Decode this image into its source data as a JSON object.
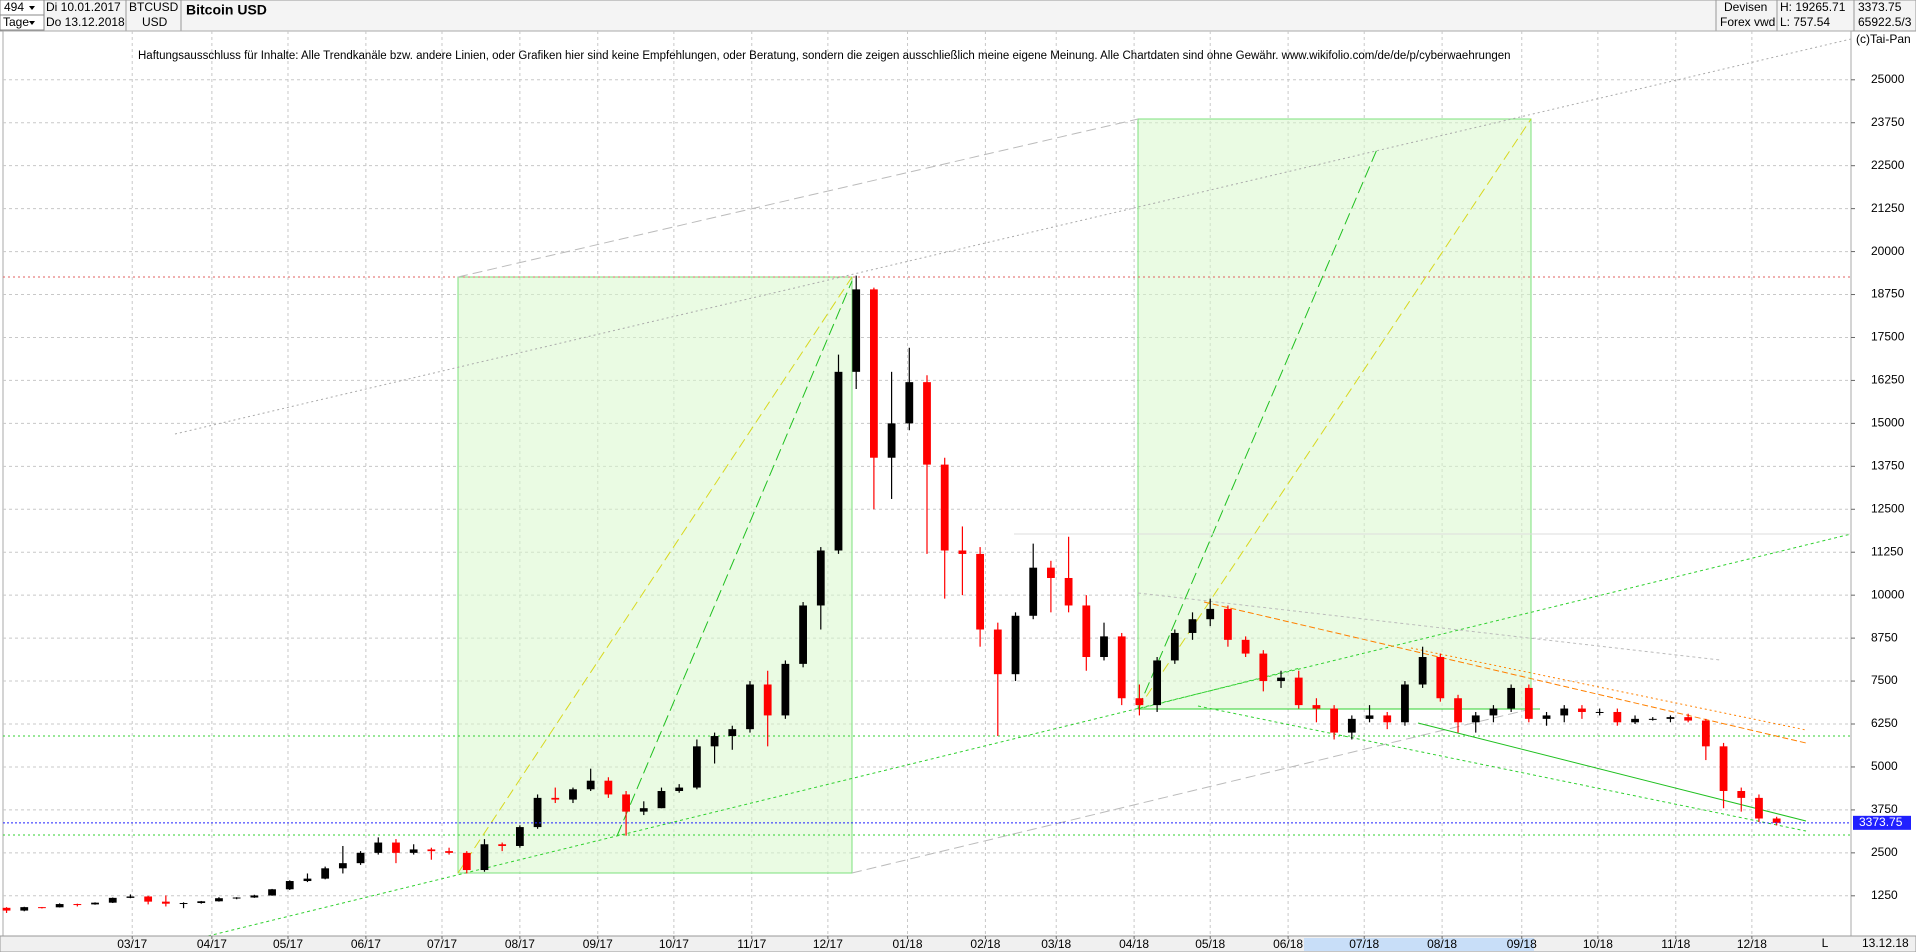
{
  "header": {
    "count": "494",
    "start": "Di 10.01.2017",
    "unit": "Tage",
    "end": "Do 13.12.2018",
    "symbol": "BTCUSD",
    "currency": "USD",
    "market": "Devisen",
    "source": "Forex vwd",
    "high": "H: 19265.71",
    "low": "L: 757.54",
    "last": "3373.75",
    "info": "65922.5/3"
  },
  "copyright": "(c)Tai-Pan",
  "disclaimer": "Haftungsausschluss für Inhalte: Alle Trendkanäle bzw. andere Linien, oder Grafiken hier sind keine Empfehlungen, oder Beratung, sondern die zeigen ausschließlich meine eigene Meinung. Alle Chartdaten sind ohne Gewähr.  www.wikifolio.com/de/de/p/cyberwaehrungen",
  "footer": {
    "date": "13.12.18",
    "scale": "L"
  },
  "chart_data": {
    "type": "candlestick",
    "title": "Bitcoin USD",
    "up_color": "#000000",
    "down_color": "#ff0000",
    "last_price": 3373.75,
    "last_color": "#2020ff",
    "grid": true,
    "xlim": [
      -0.2,
      104.2
    ],
    "xticks": [
      {
        "value": 7.1,
        "label": "03/17"
      },
      {
        "value": 11.6,
        "label": "04/17"
      },
      {
        "value": 15.9,
        "label": "05/17"
      },
      {
        "value": 20.3,
        "label": "06/17"
      },
      {
        "value": 24.6,
        "label": "07/17"
      },
      {
        "value": 29,
        "label": "08/17"
      },
      {
        "value": 33.4,
        "label": "09/17"
      },
      {
        "value": 37.7,
        "label": "10/17"
      },
      {
        "value": 42.1,
        "label": "11/17"
      },
      {
        "value": 46.4,
        "label": "12/17"
      },
      {
        "value": 50.9,
        "label": "01/18"
      },
      {
        "value": 55.3,
        "label": "02/18"
      },
      {
        "value": 59.3,
        "label": "03/18"
      },
      {
        "value": 63.7,
        "label": "04/18"
      },
      {
        "value": 68,
        "label": "05/18"
      },
      {
        "value": 72.4,
        "label": "06/18"
      },
      {
        "value": 76.7,
        "label": "07/18"
      },
      {
        "value": 81.1,
        "label": "08/18"
      },
      {
        "value": 85.6,
        "label": "09/18"
      },
      {
        "value": 89.9,
        "label": "10/18"
      },
      {
        "value": 94.3,
        "label": "11/18"
      },
      {
        "value": 98.6,
        "label": "12/18"
      }
    ],
    "ylim": [
      80,
      26420
    ],
    "yticks": [
      1250,
      2500,
      3750,
      5000,
      6250,
      7500,
      8750,
      10000,
      11250,
      12500,
      13750,
      15000,
      16250,
      17500,
      18750,
      20000,
      21250,
      22500,
      23750,
      25000
    ],
    "ohlc": [
      [
        900,
        920,
        750,
        820
      ],
      [
        820,
        930,
        800,
        920
      ],
      [
        920,
        925,
        880,
        915
      ],
      [
        915,
        1030,
        910,
        1010
      ],
      [
        1010,
        1020,
        940,
        1000
      ],
      [
        1000,
        1060,
        990,
        1050
      ],
      [
        1050,
        1200,
        1040,
        1190
      ],
      [
        1190,
        1290,
        1180,
        1230
      ],
      [
        1230,
        1250,
        1000,
        1080
      ],
      [
        1080,
        1260,
        940,
        1020
      ],
      [
        1020,
        1060,
        890,
        1040
      ],
      [
        1040,
        1100,
        1020,
        1090
      ],
      [
        1090,
        1210,
        1080,
        1180
      ],
      [
        1180,
        1210,
        1150,
        1200
      ],
      [
        1200,
        1280,
        1190,
        1260
      ],
      [
        1260,
        1450,
        1250,
        1440
      ],
      [
        1440,
        1700,
        1420,
        1680
      ],
      [
        1680,
        1900,
        1650,
        1750
      ],
      [
        1750,
        2100,
        1730,
        2050
      ],
      [
        2050,
        2700,
        1900,
        2200
      ],
      [
        2200,
        2550,
        2150,
        2500
      ],
      [
        2500,
        2950,
        2450,
        2800
      ],
      [
        2800,
        2900,
        2200,
        2500
      ],
      [
        2500,
        2750,
        2450,
        2600
      ],
      [
        2600,
        2650,
        2300,
        2550
      ],
      [
        2550,
        2650,
        2450,
        2500
      ],
      [
        2500,
        2550,
        1900,
        2000
      ],
      [
        2000,
        2900,
        1950,
        2750
      ],
      [
        2750,
        2800,
        2550,
        2700
      ],
      [
        2700,
        3300,
        2650,
        3250
      ],
      [
        3250,
        4200,
        3200,
        4100
      ],
      [
        4100,
        4400,
        3950,
        4050
      ],
      [
        4050,
        4400,
        3950,
        4350
      ],
      [
        4350,
        4950,
        4300,
        4600
      ],
      [
        4600,
        4700,
        4100,
        4200
      ],
      [
        4200,
        4300,
        3000,
        3700
      ],
      [
        3700,
        4000,
        3600,
        3800
      ],
      [
        3800,
        4400,
        3800,
        4300
      ],
      [
        4300,
        4500,
        4250,
        4400
      ],
      [
        4400,
        5800,
        4350,
        5600
      ],
      [
        5600,
        6000,
        5100,
        5900
      ],
      [
        5900,
        6200,
        5500,
        6100
      ],
      [
        6100,
        7500,
        6000,
        7400
      ],
      [
        7400,
        7800,
        5600,
        6500
      ],
      [
        6500,
        8100,
        6400,
        8000
      ],
      [
        8000,
        9800,
        7900,
        9700
      ],
      [
        9700,
        11400,
        9000,
        11300
      ],
      [
        11300,
        17000,
        11200,
        16500
      ],
      [
        16500,
        19300,
        16000,
        18900
      ],
      [
        18900,
        18950,
        12500,
        14000
      ],
      [
        14000,
        16500,
        12800,
        15000
      ],
      [
        15000,
        17200,
        14800,
        16200
      ],
      [
        16200,
        16400,
        11200,
        13800
      ],
      [
        13800,
        14000,
        9900,
        11300
      ],
      [
        11300,
        12000,
        10000,
        11200
      ],
      [
        11200,
        11400,
        8500,
        9000
      ],
      [
        9000,
        9200,
        5900,
        7700
      ],
      [
        7700,
        9500,
        7500,
        9400
      ],
      [
        9400,
        11500,
        9300,
        10800
      ],
      [
        10800,
        11000,
        9500,
        10500
      ],
      [
        10500,
        11700,
        9500,
        9700
      ],
      [
        9700,
        10000,
        7800,
        8200
      ],
      [
        8200,
        9200,
        8100,
        8800
      ],
      [
        8800,
        8900,
        6800,
        7000
      ],
      [
        7000,
        7400,
        6500,
        6800
      ],
      [
        6800,
        8200,
        6600,
        8100
      ],
      [
        8100,
        9000,
        8000,
        8900
      ],
      [
        8900,
        9500,
        8700,
        9300
      ],
      [
        9300,
        9900,
        9100,
        9600
      ],
      [
        9600,
        9700,
        8500,
        8700
      ],
      [
        8700,
        8800,
        8200,
        8300
      ],
      [
        8300,
        8400,
        7200,
        7500
      ],
      [
        7500,
        7800,
        7300,
        7600
      ],
      [
        7600,
        7800,
        6700,
        6800
      ],
      [
        6800,
        7000,
        6300,
        6700
      ],
      [
        6700,
        6800,
        5800,
        6000
      ],
      [
        6000,
        6500,
        5800,
        6400
      ],
      [
        6400,
        6800,
        6300,
        6500
      ],
      [
        6500,
        6600,
        6100,
        6300
      ],
      [
        6300,
        7500,
        6200,
        7400
      ],
      [
        7400,
        8500,
        7300,
        8200
      ],
      [
        8200,
        8300,
        6900,
        7000
      ],
      [
        7000,
        7100,
        6000,
        6300
      ],
      [
        6300,
        6600,
        6000,
        6500
      ],
      [
        6500,
        6800,
        6300,
        6700
      ],
      [
        6700,
        7400,
        6600,
        7300
      ],
      [
        7300,
        7400,
        6300,
        6400
      ],
      [
        6400,
        6600,
        6200,
        6500
      ],
      [
        6500,
        6800,
        6300,
        6700
      ],
      [
        6700,
        6800,
        6400,
        6600
      ],
      [
        6600,
        6700,
        6500,
        6600
      ],
      [
        6600,
        6700,
        6200,
        6300
      ],
      [
        6300,
        6500,
        6250,
        6400
      ],
      [
        6400,
        6450,
        6350,
        6400
      ],
      [
        6400,
        6500,
        6300,
        6450
      ],
      [
        6450,
        6550,
        6300,
        6350
      ],
      [
        6350,
        6400,
        5200,
        5600
      ],
      [
        5600,
        5700,
        3800,
        4300
      ],
      [
        4300,
        4400,
        3700,
        4100
      ],
      [
        4100,
        4200,
        3400,
        3500
      ],
      [
        3500,
        3550,
        3300,
        3374
      ]
    ]
  }
}
